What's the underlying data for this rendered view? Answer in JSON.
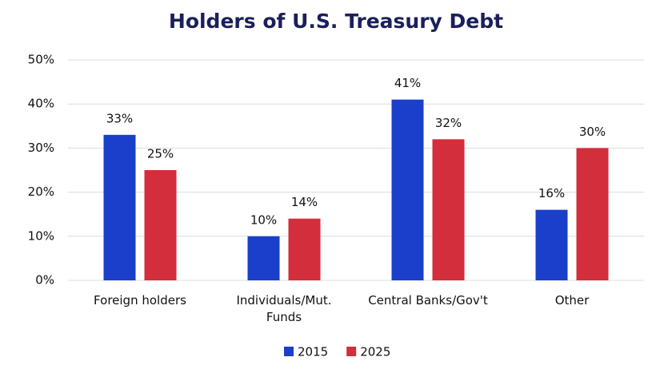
{
  "chart_data": {
    "type": "bar",
    "title": "Holders of U.S. Treasury Debt",
    "categories": [
      "Foreign holders",
      "Individuals/Mut. Funds",
      "Central Banks/Gov't",
      "Other"
    ],
    "series": [
      {
        "name": "2015",
        "color": "#1b3fcb",
        "values": [
          33,
          10,
          41,
          16
        ],
        "value_labels": [
          "33%",
          "10%",
          "41%",
          "16%"
        ]
      },
      {
        "name": "2025",
        "color": "#d22e3b",
        "values": [
          25,
          14,
          32,
          30
        ],
        "value_labels": [
          "25%",
          "14%",
          "32%",
          "30%"
        ]
      }
    ],
    "ylim": [
      0,
      50
    ],
    "yticks": [
      {
        "value": 0,
        "label": "0%"
      },
      {
        "value": 10,
        "label": "10%"
      },
      {
        "value": 20,
        "label": "20%"
      },
      {
        "value": 30,
        "label": "30%"
      },
      {
        "value": 40,
        "label": "40%"
      },
      {
        "value": 50,
        "label": "50%"
      }
    ],
    "grid": true,
    "legend": "bottom"
  }
}
